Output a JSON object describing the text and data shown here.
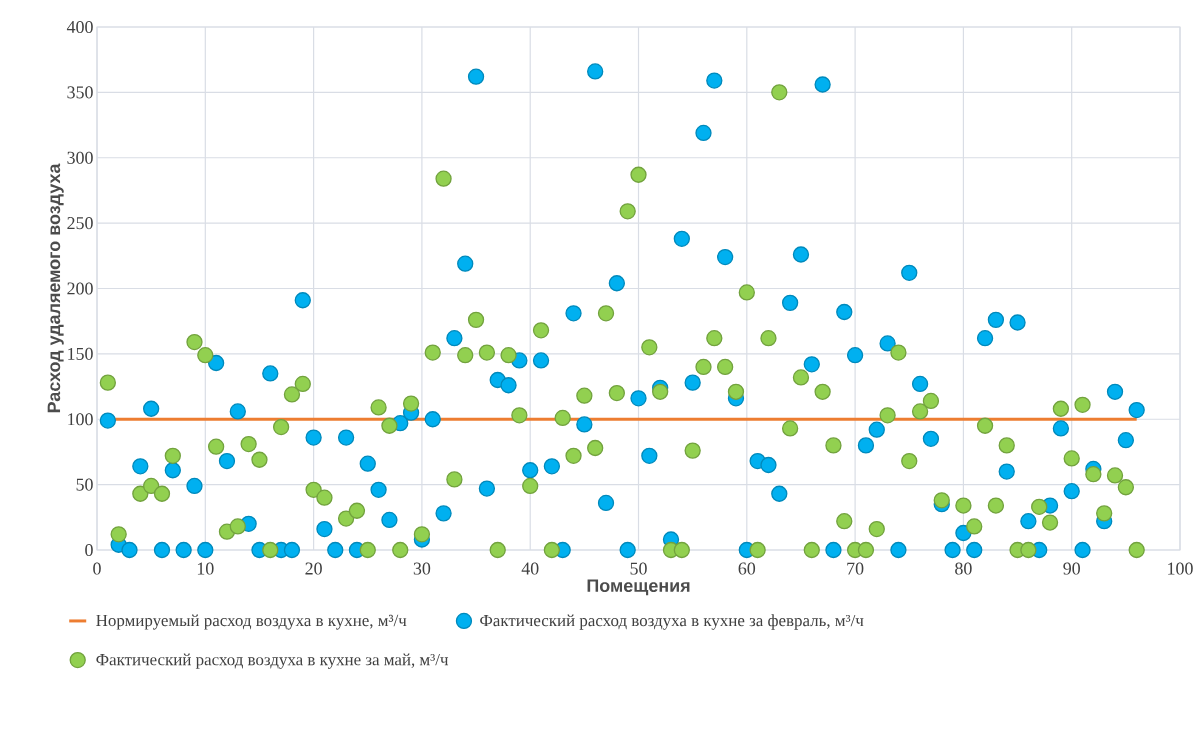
{
  "chart_data": {
    "type": "scatter",
    "xlabel": "Помещения",
    "ylabel": "Расход удаляемого воздуха",
    "xlim": [
      0,
      100
    ],
    "ylim": [
      0,
      400
    ],
    "xticks": [
      0,
      10,
      20,
      30,
      40,
      50,
      60,
      70,
      80,
      90,
      100
    ],
    "yticks": [
      0,
      50,
      100,
      150,
      200,
      250,
      300,
      350,
      400
    ],
    "grid": true,
    "legend": "bottom",
    "x": [
      1,
      2,
      3,
      4,
      5,
      6,
      7,
      8,
      9,
      10,
      11,
      12,
      13,
      14,
      15,
      16,
      17,
      18,
      19,
      20,
      21,
      22,
      23,
      24,
      25,
      26,
      27,
      28,
      29,
      30,
      31,
      32,
      33,
      34,
      35,
      36,
      37,
      38,
      39,
      40,
      41,
      42,
      43,
      44,
      45,
      46,
      47,
      48,
      49,
      50,
      51,
      52,
      53,
      54,
      55,
      56,
      57,
      58,
      59,
      60,
      61,
      62,
      63,
      64,
      65,
      66,
      67,
      68,
      69,
      70,
      71,
      72,
      73,
      74,
      75,
      76,
      77,
      78,
      79,
      80,
      81,
      82,
      83,
      84,
      85,
      86,
      87,
      88,
      89,
      90,
      91,
      92,
      93,
      94,
      95,
      96
    ],
    "series": [
      {
        "name": "Нормируемый расход воздуха в кухне, м³/ч",
        "type": "line",
        "color": "#ed7d31",
        "x": [
          1,
          96
        ],
        "values": [
          100,
          100
        ]
      },
      {
        "name": "Фактический расход воздуха в кухне за февраль, м³/ч",
        "color": "#00b0f0",
        "values": [
          99,
          4,
          0,
          64,
          108,
          0,
          61,
          0,
          49,
          0,
          143,
          68,
          106,
          20,
          0,
          135,
          0,
          0,
          191,
          86,
          16,
          0,
          86,
          0,
          66,
          46,
          23,
          97,
          105,
          8,
          100,
          28,
          162,
          219,
          362,
          47,
          130,
          126,
          145,
          61,
          145,
          64,
          0,
          181,
          96,
          366,
          36,
          204,
          0,
          116,
          72,
          124,
          8,
          238,
          128,
          319,
          359,
          224,
          116,
          0,
          68,
          65,
          43,
          189,
          226,
          142,
          356,
          0,
          182,
          149,
          80,
          92,
          158,
          0,
          212,
          127,
          85,
          35,
          0,
          13,
          0,
          162,
          176,
          60,
          174,
          22,
          0,
          34,
          93,
          45,
          0,
          62,
          22,
          121,
          84,
          107
        ]
      },
      {
        "name": "Фактический расход воздуха в кухне за май, м³/ч",
        "color": "#92d050",
        "values": [
          128,
          12,
          null,
          43,
          49,
          43,
          72,
          null,
          159,
          149,
          79,
          14,
          18,
          81,
          69,
          0,
          94,
          119,
          127,
          46,
          40,
          null,
          24,
          30,
          0,
          109,
          95,
          0,
          112,
          12,
          151,
          284,
          54,
          149,
          176,
          151,
          0,
          149,
          103,
          49,
          168,
          0,
          101,
          72,
          118,
          78,
          181,
          120,
          259,
          287,
          155,
          121,
          0,
          0,
          76,
          140,
          162,
          140,
          121,
          197,
          0,
          162,
          350,
          93,
          132,
          0,
          121,
          80,
          22,
          0,
          0,
          16,
          103,
          151,
          68,
          106,
          114,
          38,
          null,
          34,
          18,
          95,
          34,
          80,
          0,
          0,
          33,
          21,
          108,
          70,
          111,
          58,
          28,
          57,
          48,
          0
        ]
      }
    ]
  }
}
